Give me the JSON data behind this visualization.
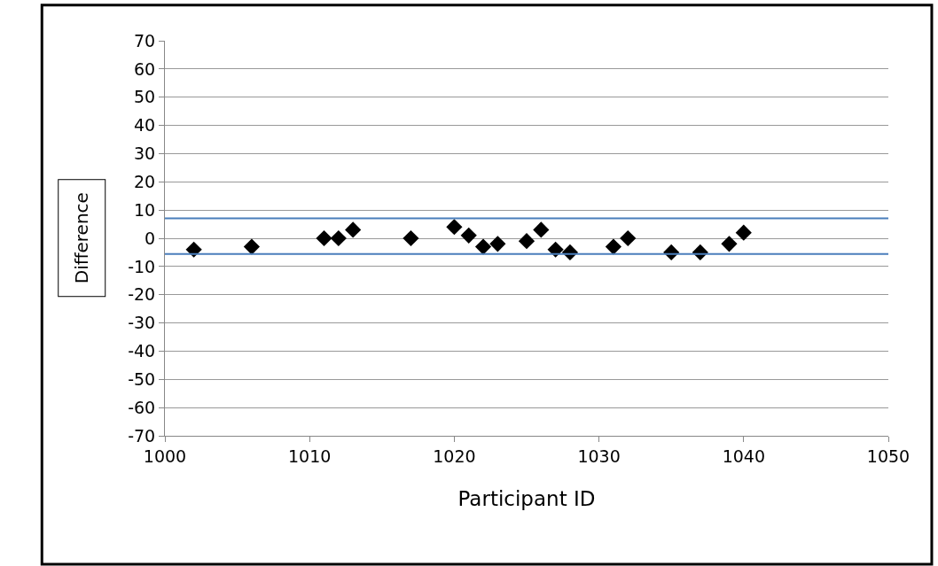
{
  "chart_data": {
    "type": "scatter",
    "xlabel": "Participant ID",
    "ylabel": "Difference",
    "x": [
      1002,
      1006,
      1011,
      1012,
      1013,
      1017,
      1020,
      1021,
      1022,
      1023,
      1025,
      1026,
      1027,
      1028,
      1031,
      1032,
      1035,
      1037,
      1039,
      1040
    ],
    "series": [
      {
        "color": "#000000",
        "values": [
          -4,
          -3,
          0,
          0,
          3,
          0,
          4,
          1,
          -3,
          -2,
          -1,
          3,
          -4,
          -5,
          -3,
          0,
          -5,
          -5,
          -2,
          2
        ]
      }
    ],
    "marker": "diamond",
    "xlim": [
      1000,
      1050
    ],
    "xticks": [
      1000,
      1010,
      1020,
      1030,
      1040,
      1050
    ],
    "ylim": [
      -70,
      70
    ],
    "yticks": [
      -70,
      -60,
      -50,
      -40,
      -30,
      -20,
      -10,
      0,
      10,
      20,
      30,
      40,
      50,
      60,
      70
    ],
    "grid": "y",
    "ref_lines": [
      {
        "axis": "y",
        "value": 7.1,
        "color": "#4a7ebb"
      },
      {
        "axis": "y",
        "value": -5.6,
        "color": "#4a7ebb"
      }
    ]
  }
}
